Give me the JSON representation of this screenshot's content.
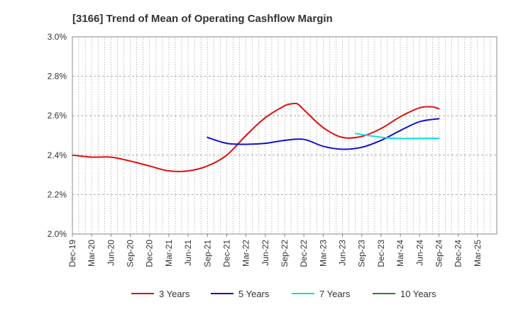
{
  "chart_data": {
    "type": "line",
    "title": "[3166]  Trend of Mean of Operating Cashflow Margin",
    "xlabel": "",
    "ylabel": "",
    "ylim": [
      2.0,
      3.0
    ],
    "yticks": [
      "2.0%",
      "2.2%",
      "2.4%",
      "2.6%",
      "2.8%",
      "3.0%"
    ],
    "x_ticks": [
      "Dec-19",
      "Mar-20",
      "Jun-20",
      "Sep-20",
      "Dec-20",
      "Mar-21",
      "Jun-21",
      "Sep-21",
      "Dec-21",
      "Mar-22",
      "Jun-22",
      "Sep-22",
      "Dec-22",
      "Mar-23",
      "Jun-23",
      "Sep-23",
      "Dec-23",
      "Mar-24",
      "Jun-24",
      "Sep-24",
      "Dec-24",
      "Mar-25"
    ],
    "x_categories": [
      "Dec-19",
      "Jan-20",
      "Feb-20",
      "Mar-20",
      "Apr-20",
      "May-20",
      "Jun-20",
      "Jul-20",
      "Aug-20",
      "Sep-20",
      "Oct-20",
      "Nov-20",
      "Dec-20",
      "Jan-21",
      "Feb-21",
      "Mar-21",
      "Apr-21",
      "May-21",
      "Jun-21",
      "Jul-21",
      "Aug-21",
      "Sep-21",
      "Oct-21",
      "Nov-21",
      "Dec-21",
      "Jan-22",
      "Feb-22",
      "Mar-22",
      "Apr-22",
      "May-22",
      "Jun-22",
      "Jul-22",
      "Aug-22",
      "Sep-22",
      "Oct-22",
      "Nov-22",
      "Dec-22",
      "Jan-23",
      "Feb-23",
      "Mar-23",
      "Apr-23",
      "May-23",
      "Jun-23",
      "Jul-23",
      "Aug-23",
      "Sep-23",
      "Oct-23",
      "Nov-23",
      "Dec-23",
      "Jan-24",
      "Feb-24",
      "Mar-24",
      "Apr-24",
      "May-24",
      "Jun-24",
      "Jul-24",
      "Aug-24",
      "Sep-24",
      "Oct-24",
      "Nov-24",
      "Dec-24",
      "Jan-25",
      "Feb-25",
      "Mar-25",
      "Apr-25",
      "May-25",
      "Jun-25"
    ],
    "series": [
      {
        "name": "3 Years",
        "color": "#dd1111",
        "points": [
          [
            "Dec-19",
            2.4
          ],
          [
            "Mar-20",
            2.39
          ],
          [
            "Jun-20",
            2.39
          ],
          [
            "Sep-20",
            2.37
          ],
          [
            "Dec-20",
            2.345
          ],
          [
            "Mar-21",
            2.32
          ],
          [
            "Jun-21",
            2.32
          ],
          [
            "Sep-21",
            2.345
          ],
          [
            "Dec-21",
            2.4
          ],
          [
            "Mar-22",
            2.5
          ],
          [
            "Jun-22",
            2.59
          ],
          [
            "Sep-22",
            2.65
          ],
          [
            "Oct-22",
            2.66
          ],
          [
            "Nov-22",
            2.66
          ],
          [
            "Dec-22",
            2.63
          ],
          [
            "Mar-23",
            2.54
          ],
          [
            "Jun-23",
            2.49
          ],
          [
            "Sep-23",
            2.495
          ],
          [
            "Dec-23",
            2.535
          ],
          [
            "Mar-24",
            2.595
          ],
          [
            "Jun-24",
            2.64
          ],
          [
            "Aug-24",
            2.645
          ],
          [
            "Sep-24",
            2.635
          ]
        ]
      },
      {
        "name": "5 Years",
        "color": "#1111cc",
        "points": [
          [
            "Sep-21",
            2.49
          ],
          [
            "Dec-21",
            2.46
          ],
          [
            "Mar-22",
            2.455
          ],
          [
            "Jun-22",
            2.46
          ],
          [
            "Sep-22",
            2.475
          ],
          [
            "Dec-22",
            2.48
          ],
          [
            "Mar-23",
            2.445
          ],
          [
            "Jun-23",
            2.43
          ],
          [
            "Sep-23",
            2.44
          ],
          [
            "Dec-23",
            2.475
          ],
          [
            "Mar-24",
            2.525
          ],
          [
            "Jun-24",
            2.57
          ],
          [
            "Sep-24",
            2.585
          ]
        ]
      },
      {
        "name": "7 Years",
        "color": "#11dddd",
        "points": [
          [
            "Aug-23",
            2.51
          ],
          [
            "Nov-23",
            2.495
          ],
          [
            "Feb-24",
            2.485
          ],
          [
            "Jun-24",
            2.485
          ],
          [
            "Sep-24",
            2.485
          ]
        ]
      },
      {
        "name": "10 Years",
        "color": "#228822",
        "points": []
      }
    ],
    "grid": true,
    "legend_position": "bottom"
  }
}
